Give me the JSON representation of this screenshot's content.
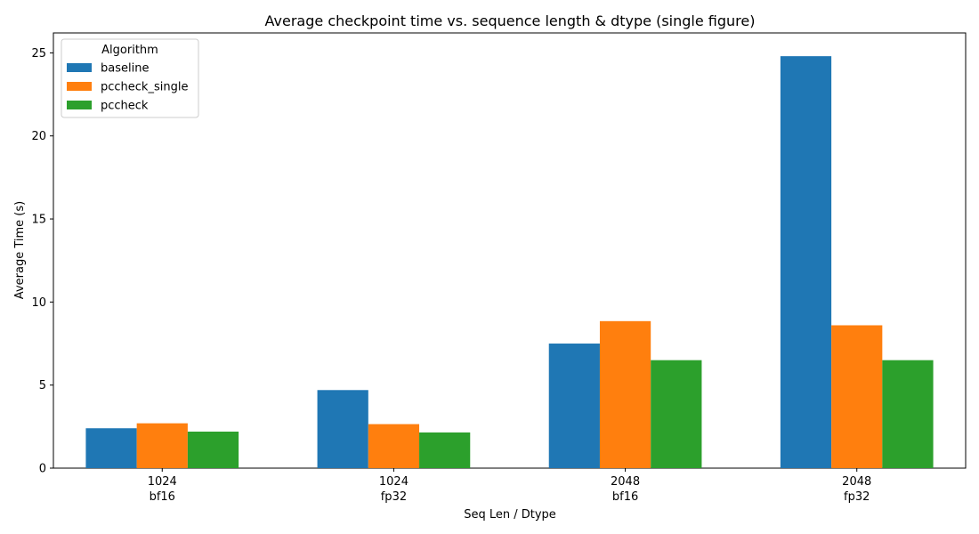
{
  "chart_data": {
    "type": "bar",
    "title": "Average checkpoint time vs. sequence length & dtype (single figure)",
    "xlabel": "Seq Len / Dtype",
    "ylabel": "Average Time (s)",
    "ylim": [
      0,
      26.2
    ],
    "yticks": [
      0,
      5,
      10,
      15,
      20,
      25
    ],
    "grid": false,
    "legend": {
      "title": "Algorithm",
      "placement": "top-left"
    },
    "categories": [
      {
        "line1": "1024",
        "line2": "bf16"
      },
      {
        "line1": "1024",
        "line2": "fp32"
      },
      {
        "line1": "2048",
        "line2": "bf16"
      },
      {
        "line1": "2048",
        "line2": "fp32"
      }
    ],
    "series": [
      {
        "name": "baseline",
        "color": "#1f77b4",
        "values": [
          2.4,
          4.7,
          7.5,
          24.8
        ]
      },
      {
        "name": "pccheck_single",
        "color": "#ff7f0e",
        "values": [
          2.7,
          2.65,
          8.85,
          8.6
        ]
      },
      {
        "name": "pccheck",
        "color": "#2ca02c",
        "values": [
          2.2,
          2.15,
          6.5,
          6.5
        ]
      }
    ]
  }
}
